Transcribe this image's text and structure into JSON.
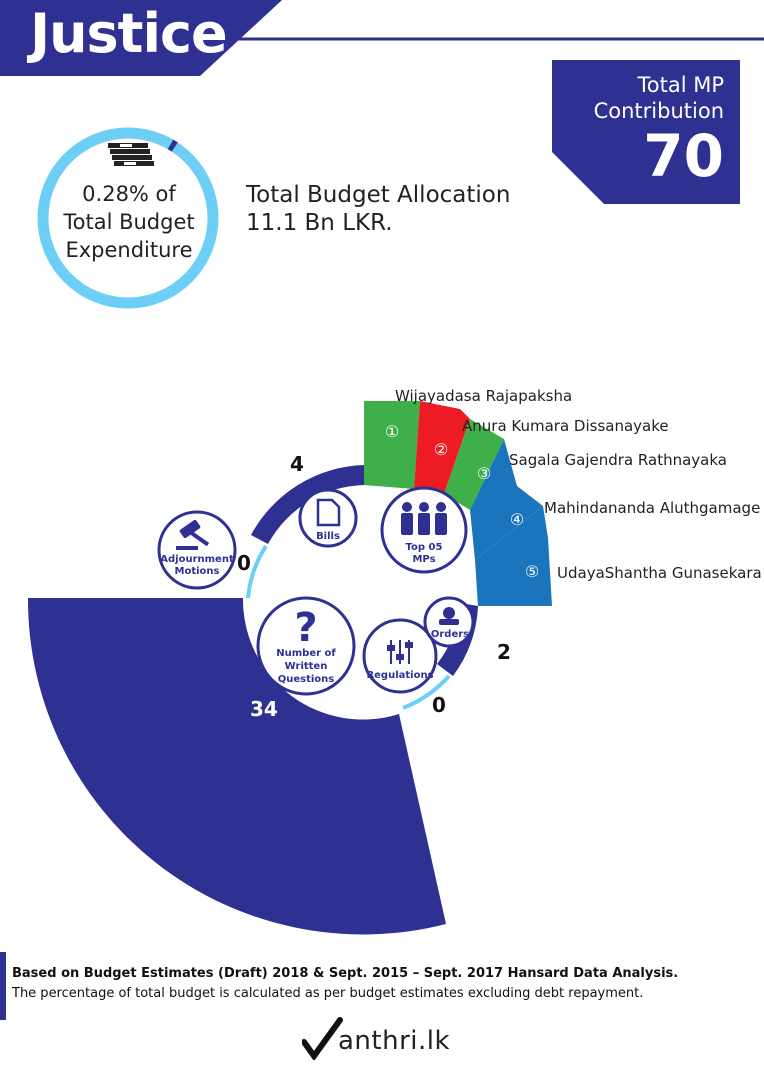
{
  "header": {
    "title": "Justice"
  },
  "mp_contribution": {
    "label_line_1": "Total MP",
    "label_line_2": "Contribution",
    "value": "70"
  },
  "budget": {
    "share_percent": 0.28,
    "ring_line_1": "0.28% of",
    "ring_line_2": "Total Budget",
    "ring_line_3": "Expenditure",
    "allocation_label": "Total Budget Allocation",
    "allocation_value": "11.1 Bn LKR.",
    "icon": "money-stack-icon"
  },
  "top_mps": {
    "label_line_1": "Top 05",
    "label_line_2": "MPs",
    "icon": "people-group-icon",
    "items": [
      {
        "rank": "①",
        "name": "Wijayadasa Rajapaksha",
        "color": "#3fb049"
      },
      {
        "rank": "②",
        "name": "Anura Kumara Dissanayake",
        "color": "#ed1c24"
      },
      {
        "rank": "③",
        "name": "Sagala Gajendra Rathnayaka",
        "color": "#3fb049"
      },
      {
        "rank": "④",
        "name": "Mahindananda Aluthgamage",
        "color": "#1a75bc"
      },
      {
        "rank": "⑤",
        "name": "UdayaShantha Gunasekara",
        "color": "#1a75bc"
      }
    ]
  },
  "activities": {
    "bills": {
      "line_1": "Bills",
      "count": "4",
      "icon": "document-icon"
    },
    "adjournment": {
      "line_1": "Adjournment",
      "line_2": "Motions",
      "count": "0",
      "icon": "gavel-icon"
    },
    "questions": {
      "line_1": "Number of",
      "line_2": "Written",
      "line_3": "Questions",
      "count": "34",
      "icon": "question-mark-icon"
    },
    "regulations": {
      "line_1": "Regulations",
      "count": "0",
      "icon": "sliders-icon"
    },
    "orders": {
      "line_1": "Orders",
      "count": "2",
      "icon": "stamp-icon"
    }
  },
  "colors": {
    "primary": "#2e3192",
    "light_blue": "#6dcff6",
    "green": "#3fb049",
    "red": "#ed1c24",
    "blue": "#1a75bc"
  },
  "footer": {
    "line_1": "Based on Budget Estimates (Draft) 2018 & Sept. 2015 – Sept. 2017 Hansard Data Analysis.",
    "line_2": "The percentage of  total budget is calculated as per budget estimates excluding debt repayment."
  },
  "logo": {
    "text": "anthri.lk",
    "icon": "checkmark-m-icon"
  }
}
